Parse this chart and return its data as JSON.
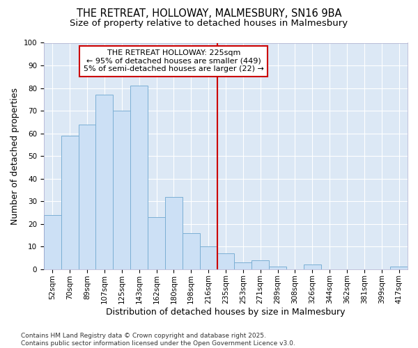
{
  "title_line1": "THE RETREAT, HOLLOWAY, MALMESBURY, SN16 9BA",
  "title_line2": "Size of property relative to detached houses in Malmesbury",
  "xlabel": "Distribution of detached houses by size in Malmesbury",
  "ylabel": "Number of detached properties",
  "bar_labels": [
    "52sqm",
    "70sqm",
    "89sqm",
    "107sqm",
    "125sqm",
    "143sqm",
    "162sqm",
    "180sqm",
    "198sqm",
    "216sqm",
    "235sqm",
    "253sqm",
    "271sqm",
    "289sqm",
    "308sqm",
    "326sqm",
    "344sqm",
    "362sqm",
    "381sqm",
    "399sqm",
    "417sqm"
  ],
  "bar_values": [
    24,
    59,
    64,
    77,
    70,
    81,
    23,
    32,
    16,
    10,
    7,
    3,
    4,
    1,
    0,
    2,
    0,
    0,
    0,
    0,
    1
  ],
  "bar_color": "#cce0f5",
  "bar_edge_color": "#7bafd4",
  "vline_x": 10.0,
  "vline_color": "#cc0000",
  "annotation_title": "THE RETREAT HOLLOWAY: 225sqm",
  "annotation_line1": "← 95% of detached houses are smaller (449)",
  "annotation_line2": "5% of semi-detached houses are larger (22) →",
  "annotation_box_color": "#cc0000",
  "ylim": [
    0,
    100
  ],
  "yticks": [
    0,
    10,
    20,
    30,
    40,
    50,
    60,
    70,
    80,
    90,
    100
  ],
  "fig_background_color": "#ffffff",
  "plot_background_color": "#dce8f5",
  "grid_color": "#ffffff",
  "footnote": "Contains HM Land Registry data © Crown copyright and database right 2025.\nContains public sector information licensed under the Open Government Licence v3.0.",
  "title_fontsize": 10.5,
  "subtitle_fontsize": 9.5,
  "axis_label_fontsize": 9,
  "tick_fontsize": 7.5,
  "annotation_fontsize": 8,
  "footnote_fontsize": 6.5
}
